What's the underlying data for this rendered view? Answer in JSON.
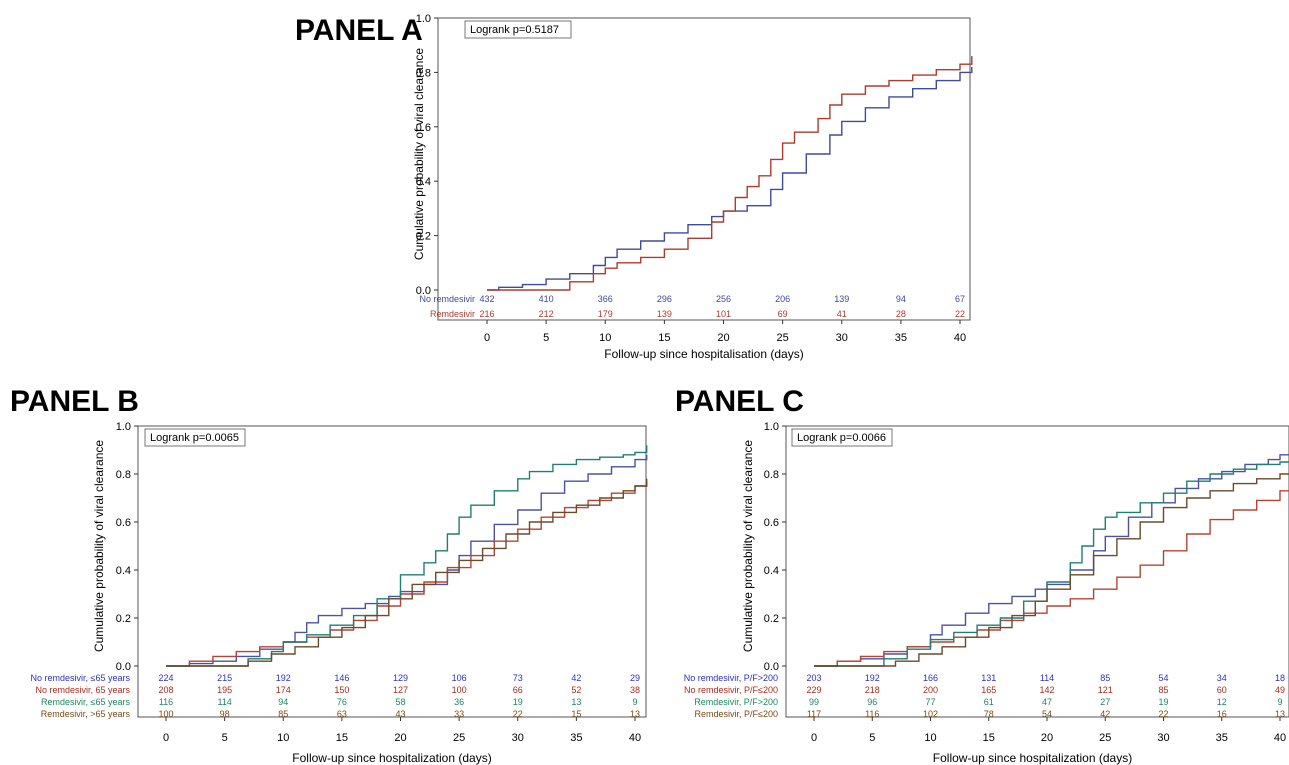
{
  "chart_data": [
    {
      "id": "A",
      "type": "line",
      "title": "PANEL A",
      "annotation": "Logrank p=0.5187",
      "xlabel": "Follow-up since hospitalisation (days)",
      "ylabel": "Cumulative probability of viral clearance",
      "xlim": [
        -2,
        41
      ],
      "ylim": [
        0,
        1.0
      ],
      "xticks": [
        0,
        5,
        10,
        15,
        20,
        25,
        30,
        35,
        40
      ],
      "yticks": [
        "0.0",
        "0.2",
        "0.4",
        "0.6",
        "0.8",
        "1.0"
      ],
      "series": [
        {
          "name": "No remdesivir",
          "color": "#3e4b9e",
          "x": [
            0,
            1,
            3,
            5,
            7,
            9,
            10,
            11,
            13,
            15,
            17,
            19,
            20,
            22,
            24,
            25,
            27,
            29,
            30,
            32,
            34,
            36,
            38,
            40,
            41
          ],
          "y": [
            0,
            0.01,
            0.02,
            0.04,
            0.06,
            0.09,
            0.12,
            0.15,
            0.18,
            0.21,
            0.24,
            0.27,
            0.29,
            0.31,
            0.37,
            0.43,
            0.5,
            0.57,
            0.62,
            0.67,
            0.71,
            0.74,
            0.77,
            0.8,
            0.82
          ]
        },
        {
          "name": "Remdesivir",
          "color": "#b03a2e",
          "x": [
            0,
            5,
            7,
            9,
            10,
            11,
            13,
            15,
            17,
            19,
            20,
            21,
            22,
            23,
            24,
            25,
            26,
            28,
            29,
            30,
            32,
            34,
            36,
            38,
            40,
            41
          ],
          "y": [
            0,
            0.0,
            0.03,
            0.06,
            0.08,
            0.1,
            0.12,
            0.15,
            0.19,
            0.25,
            0.29,
            0.34,
            0.38,
            0.42,
            0.48,
            0.54,
            0.58,
            0.63,
            0.68,
            0.72,
            0.75,
            0.77,
            0.79,
            0.81,
            0.83,
            0.86
          ]
        }
      ],
      "risk_table": [
        {
          "name": "No remdesivir",
          "color": "#3e4b9e",
          "counts": [
            "432",
            "410",
            "366",
            "296",
            "256",
            "206",
            "139",
            "94",
            "67"
          ]
        },
        {
          "name": "Remdesivir",
          "color": "#b03a2e",
          "counts": [
            "216",
            "212",
            "179",
            "139",
            "101",
            "69",
            "41",
            "28",
            "22"
          ]
        }
      ]
    },
    {
      "id": "B",
      "type": "line",
      "title": "PANEL B",
      "annotation": "Logrank p=0.0065",
      "xlabel": "Follow-up since hospitalization (days)",
      "ylabel": "Cumulative probability of viral clearance",
      "xlim": [
        -2,
        41
      ],
      "ylim": [
        0,
        1.0
      ],
      "xticks": [
        0,
        5,
        10,
        15,
        20,
        25,
        30,
        35,
        40
      ],
      "yticks": [
        "0.0",
        "0.2",
        "0.4",
        "0.6",
        "0.8",
        "1.0"
      ],
      "series": [
        {
          "name": "No remdesivir, ≤65 years",
          "color": "#4a52a8",
          "x": [
            0,
            2,
            4,
            6,
            8,
            10,
            11,
            12,
            13,
            15,
            17,
            19,
            20,
            22,
            24,
            25,
            26,
            28,
            30,
            32,
            34,
            36,
            38,
            40,
            41
          ],
          "y": [
            0,
            0.01,
            0.02,
            0.04,
            0.07,
            0.1,
            0.14,
            0.18,
            0.21,
            0.24,
            0.26,
            0.29,
            0.31,
            0.34,
            0.4,
            0.46,
            0.52,
            0.59,
            0.65,
            0.72,
            0.77,
            0.8,
            0.83,
            0.86,
            0.88
          ]
        },
        {
          "name": "No remdesivir, 65 years",
          "color": "#b84333",
          "x": [
            0,
            2,
            4,
            6,
            8,
            10,
            12,
            14,
            16,
            18,
            20,
            22,
            24,
            26,
            28,
            30,
            32,
            34,
            36,
            38,
            40,
            41
          ],
          "y": [
            0,
            0.02,
            0.04,
            0.06,
            0.08,
            0.1,
            0.12,
            0.15,
            0.19,
            0.25,
            0.3,
            0.35,
            0.41,
            0.46,
            0.52,
            0.57,
            0.62,
            0.66,
            0.69,
            0.72,
            0.75,
            0.77
          ]
        },
        {
          "name": "Remdesivir, ≤65 years",
          "color": "#1f7f72",
          "x": [
            0,
            5,
            7,
            9,
            10,
            12,
            14,
            16,
            18,
            20,
            22,
            23,
            24,
            25,
            26,
            28,
            30,
            31,
            33,
            35,
            37,
            39,
            40,
            41
          ],
          "y": [
            0,
            0.0,
            0.03,
            0.06,
            0.1,
            0.13,
            0.17,
            0.21,
            0.28,
            0.38,
            0.43,
            0.48,
            0.55,
            0.62,
            0.67,
            0.73,
            0.78,
            0.81,
            0.84,
            0.86,
            0.87,
            0.88,
            0.89,
            0.92
          ]
        },
        {
          "name": "Remdesivir, >65 years",
          "color": "#6b4a2a",
          "x": [
            0,
            5,
            7,
            9,
            11,
            13,
            15,
            17,
            19,
            21,
            23,
            25,
            27,
            29,
            31,
            33,
            35,
            37,
            39,
            40,
            41
          ],
          "y": [
            0,
            0.0,
            0.02,
            0.05,
            0.08,
            0.12,
            0.16,
            0.21,
            0.28,
            0.34,
            0.39,
            0.44,
            0.49,
            0.55,
            0.6,
            0.64,
            0.67,
            0.7,
            0.73,
            0.75,
            0.78
          ]
        }
      ],
      "risk_table": [
        {
          "name": "No remdesivir, ≤65 years",
          "color": "#2d2fc9",
          "counts": [
            "224",
            "215",
            "192",
            "146",
            "129",
            "106",
            "73",
            "42",
            "29"
          ]
        },
        {
          "name": "No remdesivir, 65 years",
          "color": "#b0281b",
          "counts": [
            "208",
            "195",
            "174",
            "150",
            "127",
            "100",
            "66",
            "52",
            "38"
          ]
        },
        {
          "name": "Remdesivir, ≤65 years",
          "color": "#1a8a5e",
          "counts": [
            "116",
            "114",
            "94",
            "76",
            "58",
            "36",
            "19",
            "13",
            "9"
          ]
        },
        {
          "name": "Remdesivir, >65 years",
          "color": "#7a4a12",
          "counts": [
            "100",
            "98",
            "85",
            "63",
            "43",
            "33",
            "22",
            "15",
            "13"
          ]
        }
      ]
    },
    {
      "id": "C",
      "type": "line",
      "title": "PANEL C",
      "annotation": "Logrank p=0.0066",
      "xlabel": "Follow-up since hospitalization (days)",
      "ylabel": "Cumulative probability of viral clearance",
      "xlim": [
        -2,
        41
      ],
      "ylim": [
        0,
        1.0
      ],
      "xticks": [
        0,
        5,
        10,
        15,
        20,
        25,
        30,
        35,
        40
      ],
      "yticks": [
        "0.0",
        "0.2",
        "0.4",
        "0.6",
        "0.8",
        "1.0"
      ],
      "series": [
        {
          "name": "No remdesivir, P/F>200",
          "color": "#4a52a8",
          "x": [
            0,
            2,
            4,
            6,
            8,
            10,
            11,
            13,
            15,
            17,
            19,
            20,
            22,
            24,
            25,
            27,
            29,
            31,
            33,
            35,
            37,
            39,
            40,
            41
          ],
          "y": [
            0,
            0.02,
            0.03,
            0.05,
            0.08,
            0.13,
            0.17,
            0.22,
            0.26,
            0.29,
            0.32,
            0.34,
            0.4,
            0.48,
            0.54,
            0.62,
            0.68,
            0.74,
            0.78,
            0.81,
            0.84,
            0.86,
            0.88,
            0.89
          ]
        },
        {
          "name": "No remdesivir, P/F≤200",
          "color": "#b84333",
          "x": [
            0,
            2,
            4,
            6,
            8,
            10,
            12,
            14,
            16,
            18,
            20,
            22,
            24,
            26,
            28,
            30,
            32,
            34,
            36,
            38,
            40,
            41
          ],
          "y": [
            0,
            0.02,
            0.04,
            0.06,
            0.08,
            0.1,
            0.12,
            0.15,
            0.19,
            0.22,
            0.25,
            0.28,
            0.32,
            0.37,
            0.42,
            0.48,
            0.55,
            0.61,
            0.65,
            0.69,
            0.73,
            0.76
          ]
        },
        {
          "name": "Remdesivir, P/F>200",
          "color": "#1f7f72",
          "x": [
            0,
            4,
            6,
            8,
            10,
            12,
            14,
            16,
            18,
            20,
            22,
            23,
            24,
            25,
            26,
            28,
            30,
            32,
            34,
            36,
            38,
            40,
            41
          ],
          "y": [
            0,
            0.0,
            0.03,
            0.07,
            0.11,
            0.14,
            0.17,
            0.2,
            0.27,
            0.35,
            0.43,
            0.5,
            0.57,
            0.62,
            0.64,
            0.68,
            0.72,
            0.77,
            0.8,
            0.82,
            0.84,
            0.85,
            0.85
          ]
        },
        {
          "name": "Remdesivir, P/F≤200",
          "color": "#6b4a2a",
          "x": [
            0,
            5,
            7,
            9,
            11,
            13,
            15,
            17,
            19,
            20,
            22,
            24,
            26,
            28,
            30,
            32,
            34,
            36,
            38,
            40,
            41
          ],
          "y": [
            0,
            0.0,
            0.02,
            0.05,
            0.08,
            0.12,
            0.16,
            0.21,
            0.27,
            0.32,
            0.38,
            0.46,
            0.53,
            0.6,
            0.66,
            0.7,
            0.73,
            0.76,
            0.78,
            0.8,
            0.82
          ]
        }
      ],
      "risk_table": [
        {
          "name": "No remdesivir, P/F>200",
          "color": "#2d2fc9",
          "counts": [
            "203",
            "192",
            "166",
            "131",
            "114",
            "85",
            "54",
            "34",
            "18"
          ]
        },
        {
          "name": "No remdesivir, P/F≤200",
          "color": "#b0281b",
          "counts": [
            "229",
            "218",
            "200",
            "165",
            "142",
            "121",
            "85",
            "60",
            "49"
          ]
        },
        {
          "name": "Remdesivir, P/F>200",
          "color": "#1a8a5e",
          "counts": [
            "99",
            "96",
            "77",
            "61",
            "47",
            "27",
            "19",
            "12",
            "9"
          ]
        },
        {
          "name": "Remdesivir, P/F≤200",
          "color": "#7a4a12",
          "counts": [
            "117",
            "116",
            "102",
            "78",
            "54",
            "42",
            "22",
            "16",
            "13"
          ]
        }
      ]
    }
  ]
}
